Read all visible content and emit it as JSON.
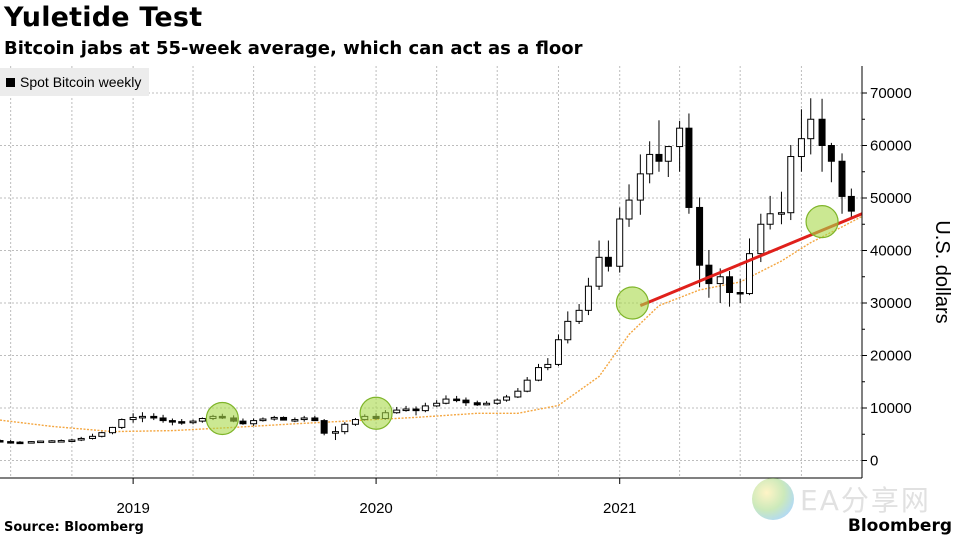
{
  "header": {
    "title": "Yuletide Test",
    "subtitle": "Bitcoin jabs at 55-week average, which can act as a floor"
  },
  "footer": {
    "source": "Source: Bloomberg",
    "brand": "Bloomberg"
  },
  "watermark": {
    "text": "EA分享网"
  },
  "colors": {
    "candle": "#000000",
    "moving_average": "#f4a640",
    "support_line": "#e0201b",
    "highlight_circle": "#a8d84a",
    "grid": "#bdbdbd"
  },
  "chart_data": {
    "type": "candlestick",
    "title": "Yuletide Test",
    "subtitle": "Bitcoin jabs at 55-week average, which can act as a floor",
    "ylabel": "U.S. dollars",
    "ylim": [
      -2000,
      75000
    ],
    "yticks": [
      0,
      10000,
      20000,
      30000,
      40000,
      50000,
      60000,
      70000
    ],
    "ytick_labels": [
      "0",
      "10000",
      "20000",
      "30000",
      "40000",
      "50000",
      "60000",
      "70000"
    ],
    "xlim": [
      "2018-06-15",
      "2021-12-31"
    ],
    "xticks": [
      "2019-01-01",
      "2020-01-01",
      "2021-01-01"
    ],
    "xtick_labels": [
      "2019",
      "2020",
      "2021"
    ],
    "legend": {
      "position": "top-left",
      "entries": [
        "Spot Bitcoin weekly"
      ]
    },
    "grid": true,
    "series": [
      {
        "name": "Spot Bitcoin weekly",
        "kind": "candlestick",
        "x": [
          "2018-06-15",
          "2018-07-01",
          "2018-07-15",
          "2018-08-01",
          "2018-08-15",
          "2018-09-01",
          "2018-09-15",
          "2018-10-01",
          "2018-10-15",
          "2018-11-01",
          "2018-11-15",
          "2018-12-01",
          "2018-12-15",
          "2019-01-01",
          "2019-01-15",
          "2019-02-01",
          "2019-02-15",
          "2019-03-01",
          "2019-03-15",
          "2019-04-01",
          "2019-04-15",
          "2019-05-01",
          "2019-05-15",
          "2019-06-01",
          "2019-06-15",
          "2019-07-01",
          "2019-07-15",
          "2019-08-01",
          "2019-08-15",
          "2019-09-01",
          "2019-09-15",
          "2019-10-01",
          "2019-10-15",
          "2019-11-01",
          "2019-11-15",
          "2019-12-01",
          "2019-12-15",
          "2020-01-01",
          "2020-01-15",
          "2020-02-01",
          "2020-02-15",
          "2020-03-01",
          "2020-03-15",
          "2020-04-01",
          "2020-04-15",
          "2020-05-01",
          "2020-05-15",
          "2020-06-01",
          "2020-06-15",
          "2020-07-01",
          "2020-07-15",
          "2020-08-01",
          "2020-08-15",
          "2020-09-01",
          "2020-09-15",
          "2020-10-01",
          "2020-10-15",
          "2020-11-01",
          "2020-11-15",
          "2020-12-01",
          "2020-12-15",
          "2021-01-01",
          "2021-01-15",
          "2021-02-01",
          "2021-02-15",
          "2021-03-01",
          "2021-03-15",
          "2021-04-01",
          "2021-04-15",
          "2021-05-01",
          "2021-05-15",
          "2021-06-01",
          "2021-06-15",
          "2021-07-01",
          "2021-07-15",
          "2021-08-01",
          "2021-08-15",
          "2021-09-01",
          "2021-09-15",
          "2021-10-01",
          "2021-10-15",
          "2021-11-01",
          "2021-11-15",
          "2021-12-01",
          "2021-12-15"
        ],
        "open": [
          3800,
          3600,
          3500,
          3450,
          3600,
          3700,
          3750,
          3800,
          3900,
          4200,
          4600,
          5300,
          6300,
          7800,
          8200,
          8400,
          8100,
          7600,
          7400,
          7200,
          7500,
          8000,
          8400,
          8100,
          7500,
          7000,
          7600,
          7900,
          8200,
          7700,
          7800,
          8100,
          7600,
          5200,
          5500,
          6900,
          7800,
          8400,
          8000,
          9100,
          9600,
          9800,
          9500,
          10400,
          10900,
          11700,
          11500,
          11000,
          10600,
          10900,
          11500,
          12100,
          13200,
          15300,
          17700,
          18300,
          23000,
          26500,
          28600,
          33200,
          38700,
          37000,
          46000,
          49600,
          54600,
          58300,
          57000,
          59800,
          63300,
          48200,
          37200,
          33700,
          35000,
          32000,
          31800,
          39400,
          45000,
          47000,
          47200,
          57900,
          61300,
          65000,
          60000,
          57000,
          50300
        ],
        "high": [
          4000,
          3900,
          3700,
          3700,
          3800,
          3900,
          4000,
          4100,
          4500,
          5100,
          5500,
          6400,
          8000,
          9000,
          9200,
          9000,
          8700,
          8000,
          7900,
          7800,
          8200,
          8700,
          8900,
          8600,
          8000,
          8000,
          8200,
          8500,
          8400,
          8200,
          8500,
          8500,
          7900,
          6500,
          7300,
          8100,
          8800,
          9000,
          9600,
          10200,
          10400,
          10300,
          11000,
          11500,
          12400,
          12300,
          12000,
          11400,
          11300,
          11800,
          12500,
          13800,
          15900,
          18400,
          19500,
          24000,
          28400,
          29800,
          34800,
          41900,
          41900,
          48200,
          52600,
          58300,
          60800,
          64800,
          59400,
          64700,
          66100,
          50100,
          40100,
          36600,
          36100,
          34600,
          42300,
          47000,
          50400,
          51200,
          60100,
          66900,
          69000,
          68900,
          60500,
          58500,
          51800
        ],
        "low": [
          3500,
          3400,
          3300,
          3300,
          3500,
          3550,
          3600,
          3700,
          3700,
          4000,
          4400,
          5000,
          6000,
          7200,
          7300,
          7700,
          7200,
          6700,
          6800,
          6900,
          7200,
          7700,
          7900,
          7300,
          6800,
          6600,
          7400,
          7600,
          7700,
          7300,
          7400,
          7500,
          4800,
          3900,
          5000,
          6600,
          7600,
          7700,
          7800,
          8900,
          9300,
          8600,
          9200,
          10200,
          10700,
          11100,
          10400,
          10400,
          10500,
          10600,
          11200,
          11900,
          13000,
          15100,
          17200,
          18000,
          22300,
          26000,
          27700,
          32500,
          36000,
          35800,
          44500,
          46800,
          52800,
          55000,
          54000,
          55000,
          47000,
          33000,
          31000,
          30000,
          29300,
          30000,
          31500,
          37800,
          44000,
          45000,
          45800,
          55000,
          58300,
          55000,
          53000,
          47000,
          46300
        ],
        "close": [
          3600,
          3500,
          3450,
          3600,
          3700,
          3750,
          3800,
          3900,
          4200,
          4600,
          5300,
          6300,
          7800,
          8200,
          8400,
          8100,
          7600,
          7400,
          7200,
          7500,
          8000,
          8400,
          8100,
          7500,
          7000,
          7600,
          7900,
          8200,
          7700,
          7800,
          8100,
          7600,
          5200,
          5500,
          6900,
          7800,
          8400,
          8000,
          9100,
          9600,
          9800,
          9500,
          10400,
          10900,
          11700,
          11500,
          11000,
          10600,
          10900,
          11500,
          12100,
          13200,
          15300,
          17700,
          18300,
          23000,
          26500,
          28600,
          33200,
          38700,
          37000,
          46000,
          49600,
          54600,
          58300,
          57000,
          59800,
          63300,
          48200,
          37200,
          33700,
          35000,
          32000,
          31800,
          39400,
          45000,
          47000,
          47200,
          57900,
          61300,
          65000,
          60000,
          57000,
          50300,
          47500
        ]
      },
      {
        "name": "55-week average",
        "kind": "line",
        "x": [
          "2018-06-15",
          "2018-09-01",
          "2018-12-01",
          "2019-03-01",
          "2019-06-01",
          "2019-09-01",
          "2019-12-01",
          "2020-03-01",
          "2020-06-01",
          "2020-08-01",
          "2020-10-01",
          "2020-12-01",
          "2021-01-15",
          "2021-03-01",
          "2021-05-01",
          "2021-07-01",
          "2021-09-01",
          "2021-10-15",
          "2021-12-01",
          "2021-12-31"
        ],
        "values": [
          7700,
          6500,
          5500,
          5700,
          6300,
          7000,
          7600,
          8200,
          9000,
          9000,
          10500,
          16000,
          24000,
          29500,
          32500,
          34000,
          38000,
          41500,
          44500,
          46500
        ]
      },
      {
        "name": "Support line",
        "kind": "line",
        "x": [
          "2021-02-01",
          "2021-12-31"
        ],
        "values": [
          29500,
          47000
        ]
      }
    ],
    "annotations": [
      {
        "type": "circle",
        "x": "2019-05-15",
        "y": 8000
      },
      {
        "type": "circle",
        "x": "2020-01-01",
        "y": 9000
      },
      {
        "type": "circle",
        "x": "2021-01-20",
        "y": 30000
      },
      {
        "type": "circle",
        "x": "2021-11-01",
        "y": 45500
      }
    ]
  }
}
